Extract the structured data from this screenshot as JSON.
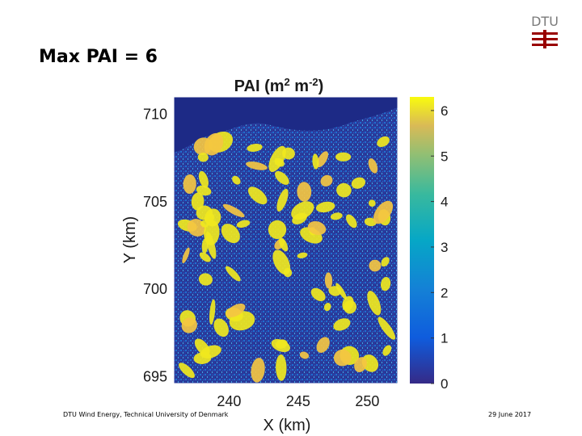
{
  "slide": {
    "title": "Max PAI = 6",
    "logo_text": "DTU",
    "footer_left": "DTU Wind Energy, Technical University of Denmark",
    "footer_right": "29 June 2017"
  },
  "colors": {
    "logo_red": "#990000",
    "logo_gray": "#7a7a7a",
    "map_background": "#2a3b9c",
    "high_value": "#f0e81e"
  },
  "chart_data": {
    "type": "heatmap",
    "title": "PAI (m² m⁻²)",
    "title_parts": {
      "main": "PAI (m",
      "exp1": "2",
      "mid": " m",
      "exp2": "-2",
      "end": ")"
    },
    "xlabel": "X (km)",
    "ylabel": "Y (km)",
    "xlim": [
      236,
      252.2
    ],
    "ylim": [
      694.6,
      711
    ],
    "x_ticks": [
      240,
      245,
      250
    ],
    "y_ticks": [
      695,
      700,
      705,
      710
    ],
    "colorbar": {
      "range": [
        0,
        6.3
      ],
      "ticks": [
        0,
        1,
        2,
        3,
        4,
        5,
        6
      ],
      "colormap": "parula"
    },
    "description_of_values": "Gridded plant area index over the study area; mostly 0–1.5 (dark blue) with yellow patches reaching the maximum 6; dark river/water band near top-left."
  }
}
